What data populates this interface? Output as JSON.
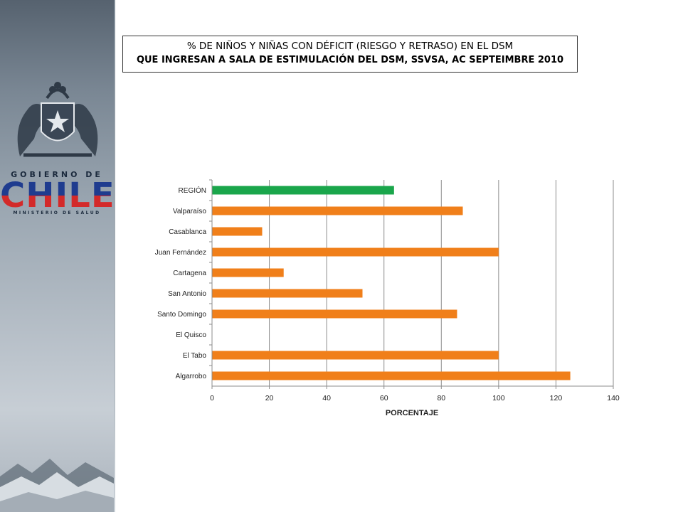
{
  "branding": {
    "gov_label": "GOBIERNO DE",
    "country_label": "CHILE",
    "ministry_label": "MINISTERIO DE SALUD",
    "crest_icon": "coat-of-arms-icon"
  },
  "title": {
    "line1": "% DE NIÑOS Y NIÑAS CON DÉFICIT (RIESGO Y RETRASO) EN EL DSM",
    "line2": "QUE INGRESAN A SALA DE ESTIMULACIÓN DEL DSM, SSVSA, AC SEPTEIMBRE 2010"
  },
  "chart_data": {
    "type": "bar",
    "orientation": "horizontal",
    "categories": [
      "REGIÓN",
      "Valparaíso",
      "Casablanca",
      "Juan Fernández",
      "Cartagena",
      "San Antonio",
      "Santo Domingo",
      "El Quisco",
      "El Tabo",
      "Algarrobo"
    ],
    "values": [
      63.5,
      87.5,
      17.5,
      100,
      25,
      52.5,
      85.5,
      0,
      100,
      125
    ],
    "colors": [
      "#1aa64b",
      "#f07f1a",
      "#f07f1a",
      "#f07f1a",
      "#f07f1a",
      "#f07f1a",
      "#f07f1a",
      "#f07f1a",
      "#f07f1a",
      "#f07f1a"
    ],
    "xlabel": "PORCENTAJE",
    "ylabel": "",
    "xlim": [
      0,
      140
    ],
    "xticks": [
      "0",
      "20",
      "40",
      "60",
      "80",
      "100",
      "120",
      "140"
    ],
    "grid": "vertical"
  }
}
